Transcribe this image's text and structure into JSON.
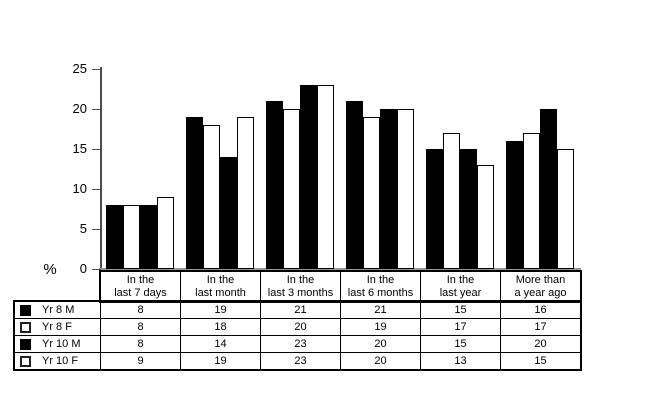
{
  "chart_data": {
    "type": "bar",
    "title": "",
    "xlabel": "",
    "ylabel": "%",
    "ylim": [
      0,
      25
    ],
    "yticks": [
      0,
      5,
      10,
      15,
      20,
      25
    ],
    "grid": false,
    "legend_position": "left-column-of-table",
    "categories": [
      {
        "line1": "In the",
        "line2": "last 7 days"
      },
      {
        "line1": "In the",
        "line2": "last month"
      },
      {
        "line1": "In the",
        "line2": "last 3 months"
      },
      {
        "line1": "In the",
        "line2": "last 6 months"
      },
      {
        "line1": "In the",
        "line2": "last year"
      },
      {
        "line1": "More than",
        "line2": "a year ago"
      }
    ],
    "series": [
      {
        "name": "Yr 8 M",
        "swatch": "black",
        "values": [
          8,
          19,
          21,
          21,
          15,
          16
        ]
      },
      {
        "name": "Yr 8 F",
        "swatch": "white",
        "values": [
          8,
          18,
          20,
          19,
          17,
          17
        ]
      },
      {
        "name": "Yr 10 M",
        "swatch": "black",
        "values": [
          8,
          14,
          23,
          20,
          15,
          20
        ]
      },
      {
        "name": "Yr 10 F",
        "swatch": "white",
        "values": [
          9,
          19,
          23,
          20,
          13,
          15
        ]
      }
    ],
    "colors": {
      "bar_fill_black": "#000000",
      "bar_fill_white": "#ffffff",
      "bar_outline": "#000000",
      "y_axis_line": "#4d4d4d",
      "x_axis_line": "#969696",
      "table_border": "#000000",
      "text": "#000000",
      "background": "#ffffff"
    }
  }
}
